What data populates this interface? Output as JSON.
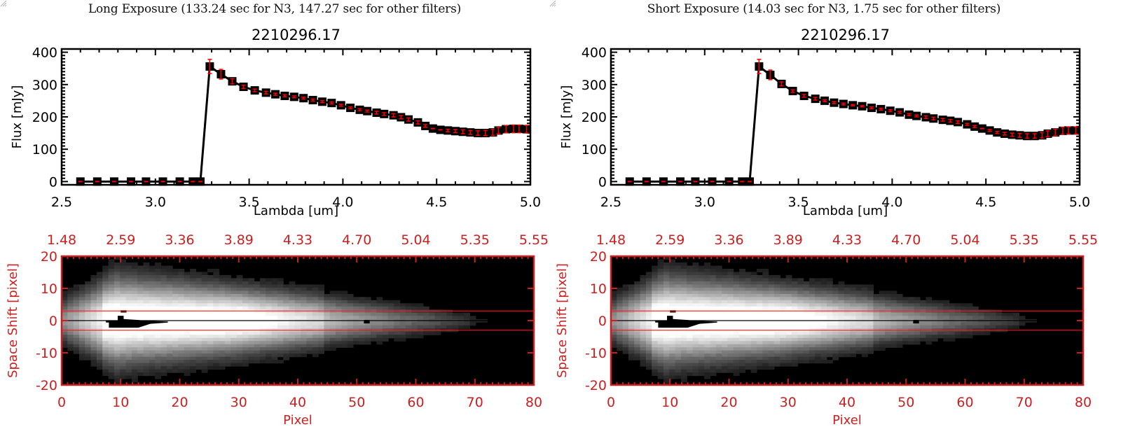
{
  "panels": [
    {
      "exposure_title": "Long Exposure (133.24 sec for N3, 147.27 sec for other filters)",
      "object_id": "2210296.17"
    },
    {
      "exposure_title": "Short Exposure (14.03 sec for N3, 1.75 sec for other filters)",
      "object_id": "2210296.17"
    }
  ],
  "chart_data": [
    {
      "type": "line",
      "panel": "long",
      "title": "2210296.17",
      "xlabel": "Lambda [um]",
      "ylabel": "Flux [mJy]",
      "xlim": [
        2.5,
        5.0
      ],
      "ylim": [
        -10,
        410
      ],
      "xticks": [
        "2.5",
        "3.0",
        "3.5",
        "4.0",
        "4.5",
        "5.0"
      ],
      "yticks": [
        "0",
        "100",
        "200",
        "300",
        "400"
      ],
      "line_color": "#000000",
      "errorbar_color": "#ff0000",
      "x": [
        2.6,
        2.69,
        2.78,
        2.87,
        2.95,
        3.04,
        3.13,
        3.2,
        3.24,
        3.29,
        3.35,
        3.41,
        3.47,
        3.53,
        3.59,
        3.64,
        3.69,
        3.74,
        3.79,
        3.84,
        3.89,
        3.94,
        3.99,
        4.04,
        4.09,
        4.13,
        4.18,
        4.22,
        4.27,
        4.31,
        4.35,
        4.4,
        4.44,
        4.48,
        4.52,
        4.56,
        4.6,
        4.64,
        4.68,
        4.72,
        4.76,
        4.8,
        4.83,
        4.87,
        4.91,
        4.94,
        4.98
      ],
      "y": [
        0,
        0,
        0,
        0,
        0,
        0,
        0,
        0,
        0,
        356,
        332,
        310,
        293,
        282,
        275,
        270,
        265,
        262,
        258,
        252,
        247,
        243,
        236,
        228,
        222,
        218,
        213,
        209,
        205,
        199,
        192,
        183,
        172,
        164,
        160,
        158,
        156,
        154,
        152,
        150,
        150,
        152,
        158,
        162,
        163,
        163,
        162
      ],
      "yerr": [
        0,
        0,
        0,
        0,
        0,
        0,
        0,
        0,
        0,
        22,
        15,
        8,
        5,
        4,
        4,
        3,
        3,
        3,
        3,
        3,
        3,
        3,
        3,
        3,
        3,
        3,
        4,
        4,
        5,
        5,
        5,
        5,
        4,
        1,
        1,
        4,
        5,
        6,
        6,
        7,
        8,
        9,
        10,
        11,
        12,
        12,
        12
      ]
    },
    {
      "type": "line",
      "panel": "short",
      "title": "2210296.17",
      "xlabel": "Lambda [um]",
      "ylabel": "Flux [mJy]",
      "xlim": [
        2.5,
        5.0
      ],
      "ylim": [
        -10,
        410
      ],
      "xticks": [
        "2.5",
        "3.0",
        "3.5",
        "4.0",
        "4.5",
        "5.0"
      ],
      "yticks": [
        "0",
        "100",
        "200",
        "300",
        "400"
      ],
      "line_color": "#000000",
      "errorbar_color": "#ff0000",
      "x": [
        2.6,
        2.69,
        2.78,
        2.87,
        2.95,
        3.04,
        3.13,
        3.2,
        3.24,
        3.29,
        3.35,
        3.41,
        3.47,
        3.53,
        3.59,
        3.64,
        3.69,
        3.74,
        3.79,
        3.84,
        3.89,
        3.94,
        3.99,
        4.04,
        4.09,
        4.13,
        4.18,
        4.22,
        4.27,
        4.31,
        4.35,
        4.4,
        4.44,
        4.48,
        4.52,
        4.56,
        4.6,
        4.64,
        4.68,
        4.72,
        4.76,
        4.8,
        4.83,
        4.87,
        4.91,
        4.94,
        4.98
      ],
      "y": [
        0,
        0,
        0,
        0,
        0,
        0,
        0,
        0,
        0,
        356,
        330,
        302,
        280,
        265,
        256,
        250,
        244,
        240,
        236,
        233,
        228,
        224,
        219,
        214,
        207,
        203,
        199,
        195,
        191,
        188,
        184,
        177,
        170,
        164,
        158,
        152,
        148,
        145,
        143,
        141,
        141,
        143,
        148,
        152,
        157,
        158,
        158
      ],
      "yerr": [
        0,
        0,
        0,
        0,
        0,
        0,
        0,
        0,
        0,
        22,
        15,
        6,
        4,
        4,
        4,
        3,
        3,
        3,
        2,
        2,
        3,
        3,
        3,
        3,
        3,
        3,
        4,
        4,
        4,
        4,
        4,
        3,
        3,
        1,
        3,
        3,
        4,
        5,
        6,
        7,
        7,
        8,
        9,
        10,
        11,
        11,
        11
      ]
    },
    {
      "type": "heatmap",
      "panel": "long",
      "xlabel": "Pixel",
      "ylabel": "Space Shift [pixel]",
      "top_axis_ticks": [
        "1.48",
        "2.59",
        "3.36",
        "3.89",
        "4.33",
        "4.70",
        "5.04",
        "5.35",
        "5.55"
      ],
      "xticks": [
        "0",
        "10",
        "20",
        "30",
        "40",
        "50",
        "60",
        "70",
        "80"
      ],
      "yticks": [
        "20",
        "10",
        "0",
        "-10",
        "-20"
      ],
      "xlim": [
        0,
        80
      ],
      "ylim": [
        -20,
        20
      ],
      "aperture_lines": [
        3,
        -3
      ],
      "center_line": 0,
      "axis_color": "#cc2020",
      "colormap": "grayscale"
    },
    {
      "type": "heatmap",
      "panel": "short",
      "xlabel": "Pixel",
      "ylabel": "Space Shift [pixel]",
      "top_axis_ticks": [
        "1.48",
        "2.59",
        "3.36",
        "3.89",
        "4.33",
        "4.70",
        "5.04",
        "5.35",
        "5.55"
      ],
      "xticks": [
        "0",
        "10",
        "20",
        "30",
        "40",
        "50",
        "60",
        "70",
        "80"
      ],
      "yticks": [
        "20",
        "10",
        "0",
        "-10",
        "-20"
      ],
      "xlim": [
        0,
        80
      ],
      "ylim": [
        -20,
        20
      ],
      "aperture_lines": [
        3,
        -3
      ],
      "center_line": 0,
      "axis_color": "#cc2020",
      "colormap": "grayscale"
    }
  ]
}
